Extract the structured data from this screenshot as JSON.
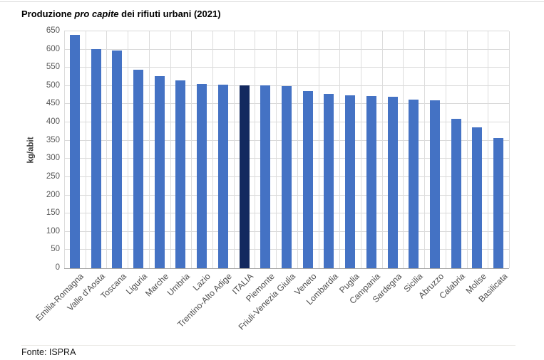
{
  "page": {
    "title": {
      "prefix": "Produzione ",
      "italic": "pro capite",
      "suffix": " dei rifiuti urbani (2021)"
    },
    "source": "Fonte: ISPRA"
  },
  "chart_data": {
    "type": "bar",
    "title": "Produzione pro capite dei rifiuti urbani (2021)",
    "xlabel": "",
    "ylabel": "kg/abit",
    "ylim": [
      0,
      650
    ],
    "ytick_step": 50,
    "grid": true,
    "legend": false,
    "highlight_category": "ITALIA",
    "colors": {
      "bar": "#4472C4",
      "highlight": "#13295F",
      "hgrid": "#d9d9d9",
      "vgrid": "#dcdcdc",
      "axis": "#a6a6a6"
    },
    "categories": [
      "Emilia-Romagna",
      "Valle d'Aosta",
      "Toscana",
      "Liguria",
      "Marche",
      "Umbria",
      "Lazio",
      "Trentino-Alto Adige",
      "ITALIA",
      "Piemonte",
      "Friuli-Venezia Giulia",
      "Veneto",
      "Lombardia",
      "Puglia",
      "Campania",
      "Sardegna",
      "Sicilia",
      "Abruzzo",
      "Calabria",
      "Molise",
      "Basilicata"
    ],
    "values": [
      640,
      601,
      597,
      545,
      528,
      516,
      505,
      503,
      502,
      501,
      499,
      487,
      478,
      475,
      472,
      471,
      463,
      460,
      410,
      386,
      358
    ]
  }
}
